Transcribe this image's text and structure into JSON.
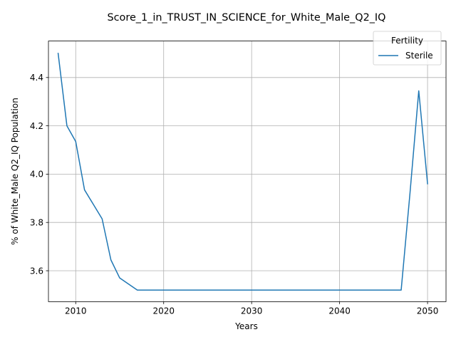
{
  "chart_data": {
    "type": "line",
    "title": "Score_1_in_TRUST_IN_SCIENCE_for_White_Male_Q2_IQ",
    "xlabel": "Years",
    "ylabel": "% of White_Male Q2_IQ Population",
    "xlim": [
      2006.9,
      2052.1
    ],
    "ylim": [
      3.472,
      4.551
    ],
    "x_ticks": [
      2010,
      2020,
      2030,
      2040,
      2050
    ],
    "x_tick_labels": [
      "2010",
      "2020",
      "2030",
      "2040",
      "2050"
    ],
    "y_ticks": [
      3.6,
      3.8,
      4.0,
      4.2,
      4.4
    ],
    "y_tick_labels": [
      "3.6",
      "3.8",
      "4.0",
      "4.2",
      "4.4"
    ],
    "grid": true,
    "legend": {
      "title": "Fertility",
      "placement": "top-right"
    },
    "series": [
      {
        "name": "Sterile",
        "color": "#1f77b4",
        "x": [
          2008,
          2009,
          2010,
          2011,
          2012,
          2013,
          2014,
          2015,
          2016,
          2017,
          2018,
          2019,
          2020,
          2021,
          2022,
          2023,
          2024,
          2025,
          2026,
          2027,
          2028,
          2029,
          2030,
          2031,
          2032,
          2033,
          2034,
          2035,
          2036,
          2037,
          2038,
          2039,
          2040,
          2041,
          2042,
          2043,
          2044,
          2045,
          2046,
          2047,
          2048,
          2049,
          2050
        ],
        "y": [
          4.5,
          4.2,
          4.135,
          3.935,
          3.875,
          3.815,
          3.645,
          3.57,
          3.545,
          3.52,
          3.52,
          3.52,
          3.52,
          3.52,
          3.52,
          3.52,
          3.52,
          3.52,
          3.52,
          3.52,
          3.52,
          3.52,
          3.52,
          3.52,
          3.52,
          3.52,
          3.52,
          3.52,
          3.52,
          3.52,
          3.52,
          3.52,
          3.52,
          3.52,
          3.52,
          3.52,
          3.52,
          3.52,
          3.52,
          3.52,
          3.92,
          4.345,
          3.96
        ]
      }
    ]
  }
}
